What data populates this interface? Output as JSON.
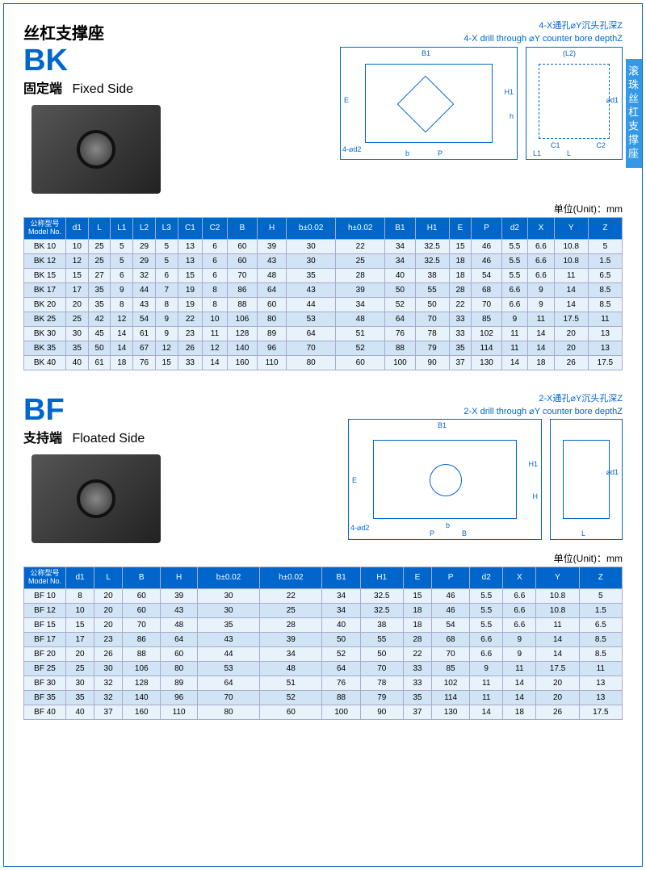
{
  "side_tab": "滚珠丝杠支撑座",
  "bk": {
    "cn_title": "丝杠支撑座",
    "code": "BK",
    "sub_cn": "固定端",
    "sub_en": "Fixed Side",
    "note_cn": "4-X通孔⌀Y沉头孔深Z",
    "note_en": "4-X drill through ⌀Y counter bore depthZ",
    "unit_label": "单位(Unit)：mm",
    "model_hdr_cn": "公称型号",
    "model_hdr_en": "Model No.",
    "columns": [
      "d1",
      "L",
      "L1",
      "L2",
      "L3",
      "C1",
      "C2",
      "B",
      "H",
      "b±0.02",
      "h±0.02",
      "B1",
      "H1",
      "E",
      "P",
      "d2",
      "X",
      "Y",
      "Z"
    ],
    "rows": [
      [
        "BK 10",
        "10",
        "25",
        "5",
        "29",
        "5",
        "13",
        "6",
        "60",
        "39",
        "30",
        "22",
        "34",
        "32.5",
        "15",
        "46",
        "5.5",
        "6.6",
        "10.8",
        "5"
      ],
      [
        "BK 12",
        "12",
        "25",
        "5",
        "29",
        "5",
        "13",
        "6",
        "60",
        "43",
        "30",
        "25",
        "34",
        "32.5",
        "18",
        "46",
        "5.5",
        "6.6",
        "10.8",
        "1.5"
      ],
      [
        "BK 15",
        "15",
        "27",
        "6",
        "32",
        "6",
        "15",
        "6",
        "70",
        "48",
        "35",
        "28",
        "40",
        "38",
        "18",
        "54",
        "5.5",
        "6.6",
        "11",
        "6.5"
      ],
      [
        "BK 17",
        "17",
        "35",
        "9",
        "44",
        "7",
        "19",
        "8",
        "86",
        "64",
        "43",
        "39",
        "50",
        "55",
        "28",
        "68",
        "6.6",
        "9",
        "14",
        "8.5"
      ],
      [
        "BK 20",
        "20",
        "35",
        "8",
        "43",
        "8",
        "19",
        "8",
        "88",
        "60",
        "44",
        "34",
        "52",
        "50",
        "22",
        "70",
        "6.6",
        "9",
        "14",
        "8.5"
      ],
      [
        "BK 25",
        "25",
        "42",
        "12",
        "54",
        "9",
        "22",
        "10",
        "106",
        "80",
        "53",
        "48",
        "64",
        "70",
        "33",
        "85",
        "9",
        "11",
        "17.5",
        "11"
      ],
      [
        "BK 30",
        "30",
        "45",
        "14",
        "61",
        "9",
        "23",
        "11",
        "128",
        "89",
        "64",
        "51",
        "76",
        "78",
        "33",
        "102",
        "11",
        "14",
        "20",
        "13"
      ],
      [
        "BK 35",
        "35",
        "50",
        "14",
        "67",
        "12",
        "26",
        "12",
        "140",
        "96",
        "70",
        "52",
        "88",
        "79",
        "35",
        "114",
        "11",
        "14",
        "20",
        "13"
      ],
      [
        "BK 40",
        "40",
        "61",
        "18",
        "76",
        "15",
        "33",
        "14",
        "160",
        "110",
        "80",
        "60",
        "100",
        "90",
        "37",
        "130",
        "14",
        "18",
        "26",
        "17.5"
      ]
    ]
  },
  "bf": {
    "code": "BF",
    "sub_cn": "支持端",
    "sub_en": "Floated Side",
    "note_cn": "2-X通孔⌀Y沉头孔深Z",
    "note_en": "2-X drill through ⌀Y counter bore depthZ",
    "unit_label": "单位(Unit)：mm",
    "model_hdr_cn": "公称型号",
    "model_hdr_en": "Model No.",
    "columns": [
      "d1",
      "L",
      "B",
      "H",
      "b±0.02",
      "h±0.02",
      "B1",
      "H1",
      "E",
      "P",
      "d2",
      "X",
      "Y",
      "Z"
    ],
    "rows": [
      [
        "BF 10",
        "8",
        "20",
        "60",
        "39",
        "30",
        "22",
        "34",
        "32.5",
        "15",
        "46",
        "5.5",
        "6.6",
        "10.8",
        "5"
      ],
      [
        "BF 12",
        "10",
        "20",
        "60",
        "43",
        "30",
        "25",
        "34",
        "32.5",
        "18",
        "46",
        "5.5",
        "6.6",
        "10.8",
        "1.5"
      ],
      [
        "BF 15",
        "15",
        "20",
        "70",
        "48",
        "35",
        "28",
        "40",
        "38",
        "18",
        "54",
        "5.5",
        "6.6",
        "11",
        "6.5"
      ],
      [
        "BF 17",
        "17",
        "23",
        "86",
        "64",
        "43",
        "39",
        "50",
        "55",
        "28",
        "68",
        "6.6",
        "9",
        "14",
        "8.5"
      ],
      [
        "BF 20",
        "20",
        "26",
        "88",
        "60",
        "44",
        "34",
        "52",
        "50",
        "22",
        "70",
        "6.6",
        "9",
        "14",
        "8.5"
      ],
      [
        "BF 25",
        "25",
        "30",
        "106",
        "80",
        "53",
        "48",
        "64",
        "70",
        "33",
        "85",
        "9",
        "11",
        "17.5",
        "11"
      ],
      [
        "BF 30",
        "30",
        "32",
        "128",
        "89",
        "64",
        "51",
        "76",
        "78",
        "33",
        "102",
        "11",
        "14",
        "20",
        "13"
      ],
      [
        "BF 35",
        "35",
        "32",
        "140",
        "96",
        "70",
        "52",
        "88",
        "79",
        "35",
        "114",
        "11",
        "14",
        "20",
        "13"
      ],
      [
        "BF 40",
        "40",
        "37",
        "160",
        "110",
        "80",
        "60",
        "100",
        "90",
        "37",
        "130",
        "14",
        "18",
        "26",
        "17.5"
      ]
    ]
  },
  "colors": {
    "primary": "#0066cc",
    "row_odd": "#e8f2fb",
    "row_even": "#d0e4f5"
  }
}
